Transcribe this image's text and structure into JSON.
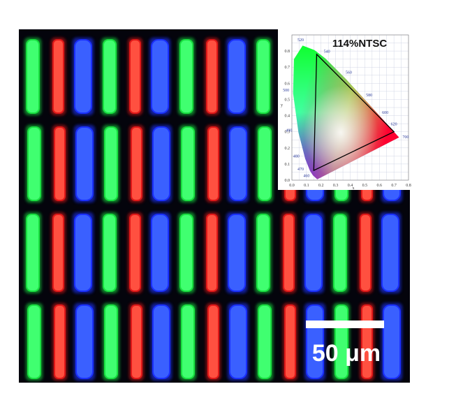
{
  "inset": {
    "title": "114%NTSC",
    "xlabel": "x",
    "ylabel": "y",
    "xticks": [
      "0.0",
      "0.1",
      "0.2",
      "0.3",
      "0.4",
      "0.5",
      "0.6",
      "0.7",
      "0.8"
    ],
    "yticks": [
      "0.0",
      "0.1",
      "0.2",
      "0.3",
      "0.4",
      "0.5",
      "0.6",
      "0.7",
      "0.8"
    ],
    "wavelength_labels": [
      "520",
      "540",
      "560",
      "580",
      "600",
      "620",
      "700",
      "500",
      "490",
      "480",
      "470",
      "460"
    ]
  },
  "scale_bar": {
    "label": "50 μm"
  }
}
